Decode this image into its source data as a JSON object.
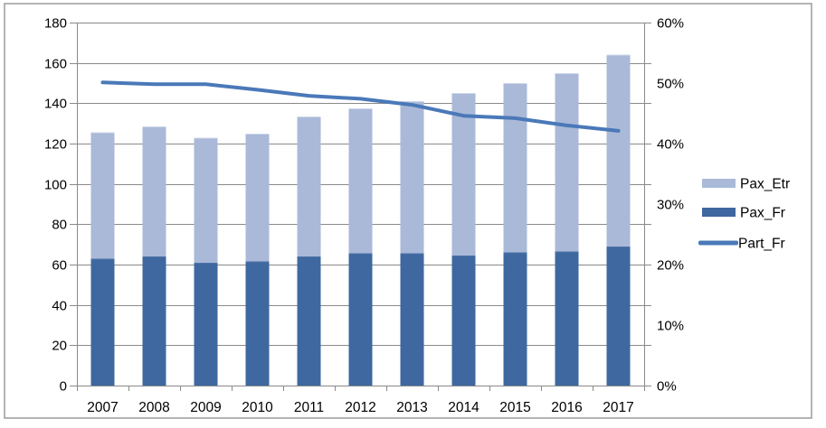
{
  "chart_data": {
    "type": "combo (stacked bar + line)",
    "categories": [
      "2007",
      "2008",
      "2009",
      "2010",
      "2011",
      "2012",
      "2013",
      "2014",
      "2015",
      "2016",
      "2017"
    ],
    "series": [
      {
        "name": "Pax_Etr",
        "type": "bar",
        "role": "stack-top",
        "axis": "left",
        "color": "#aab9d8",
        "edge_color": "#cdd7e9",
        "values": [
          62.5,
          64.5,
          62,
          63.5,
          69.5,
          72,
          75.5,
          80.5,
          84,
          88.5,
          95
        ]
      },
      {
        "name": "Pax_Fr",
        "type": "bar",
        "role": "stack-bottom",
        "axis": "left",
        "color": "#3e689f",
        "edge_color": "#4e74a8",
        "values": [
          63,
          64,
          61,
          61.5,
          64,
          65.5,
          65.5,
          64.5,
          66,
          66.5,
          69
        ]
      },
      {
        "name": "Part_Fr",
        "type": "line",
        "axis": "right",
        "unit": "%",
        "color": "#4a79b8",
        "values": [
          50.1,
          49.8,
          49.8,
          48.9,
          47.9,
          47.4,
          46.4,
          44.6,
          44.2,
          43.0,
          42.1
        ]
      }
    ],
    "stacked_totals": [
      125.5,
      128.5,
      123,
      125,
      133.5,
      137.5,
      141,
      145,
      150,
      155,
      164
    ],
    "left_axis": {
      "min": 0,
      "max": 180,
      "step": 20,
      "tick_labels": [
        "0",
        "20",
        "40",
        "60",
        "80",
        "100",
        "120",
        "140",
        "160",
        "180"
      ]
    },
    "right_axis": {
      "min": 0,
      "max": 60,
      "step": 10,
      "tick_labels": [
        "0%",
        "10%",
        "20%",
        "30%",
        "40%",
        "50%",
        "60%"
      ]
    },
    "legend": {
      "position": "right",
      "entries": [
        {
          "label": "Pax_Etr",
          "swatch": "bar",
          "series": "Pax_Etr"
        },
        {
          "label": "Pax_Fr",
          "swatch": "bar",
          "series": "Pax_Fr"
        },
        {
          "label": "Part_Fr",
          "swatch": "line",
          "series": "Part_Fr"
        }
      ]
    },
    "grid": true
  },
  "styles": {
    "grid_color": "#8a8a8a",
    "axis_color": "#8a8a8a",
    "border_color": "#9b9b9b",
    "text_color": "#000000",
    "background": "#ffffff"
  }
}
